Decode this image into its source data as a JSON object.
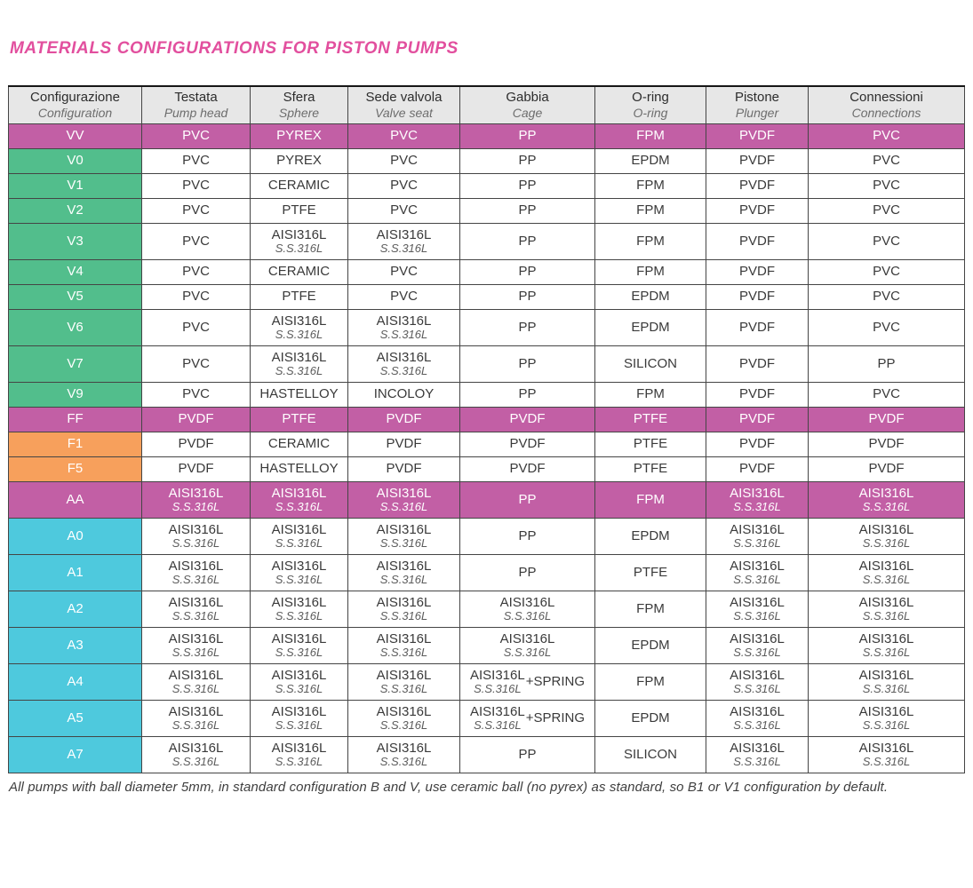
{
  "title": "MATERIALS CONFIGURATIONS FOR PISTON PUMPS",
  "footnote": "All pumps with ball diameter 5mm, in standard configuration B and V, use ceramic ball (no pyrex) as standard, so B1 or V1 configuration by default.",
  "colors": {
    "pink": "#e24f9e",
    "magenta": "#c25fa5",
    "green": "#52be8c",
    "orange": "#f7a05c",
    "cyan": "#4ec9dd",
    "headerBg": "#e7e7e7"
  },
  "table": {
    "columns": [
      {
        "it": "Configurazione",
        "en": "Configuration"
      },
      {
        "it": "Testata",
        "en": "Pump head"
      },
      {
        "it": "Sfera",
        "en": "Sphere"
      },
      {
        "it": "Sede valvola",
        "en": "Valve seat"
      },
      {
        "it": "Gabbia",
        "en": "Cage"
      },
      {
        "it": "O-ring",
        "en": "O-ring"
      },
      {
        "it": "Pistone",
        "en": "Plunger"
      },
      {
        "it": "Connessioni",
        "en": "Connections"
      }
    ],
    "rows": [
      {
        "code": "VV",
        "type": "magenta",
        "cells": [
          "PVC",
          "PYREX",
          "PVC",
          "PP",
          "FPM",
          "PVDF",
          "PVC"
        ]
      },
      {
        "code": "V0",
        "type": "green",
        "cells": [
          "PVC",
          "PYREX",
          "PVC",
          "PP",
          "EPDM",
          "PVDF",
          "PVC"
        ]
      },
      {
        "code": "V1",
        "type": "green",
        "cells": [
          "PVC",
          "CERAMIC",
          "PVC",
          "PP",
          "FPM",
          "PVDF",
          "PVC"
        ]
      },
      {
        "code": "V2",
        "type": "green",
        "cells": [
          "PVC",
          "PTFE",
          "PVC",
          "PP",
          "FPM",
          "PVDF",
          "PVC"
        ]
      },
      {
        "code": "V3",
        "type": "green",
        "cells": [
          "PVC",
          {
            "main": "AISI316L",
            "sub": "S.S.316L"
          },
          {
            "main": "AISI316L",
            "sub": "S.S.316L"
          },
          "PP",
          "FPM",
          "PVDF",
          "PVC"
        ]
      },
      {
        "code": "V4",
        "type": "green",
        "cells": [
          "PVC",
          "CERAMIC",
          "PVC",
          "PP",
          "FPM",
          "PVDF",
          "PVC"
        ]
      },
      {
        "code": "V5",
        "type": "green",
        "cells": [
          "PVC",
          "PTFE",
          "PVC",
          "PP",
          "EPDM",
          "PVDF",
          "PVC"
        ]
      },
      {
        "code": "V6",
        "type": "green",
        "cells": [
          "PVC",
          {
            "main": "AISI316L",
            "sub": "S.S.316L"
          },
          {
            "main": "AISI316L",
            "sub": "S.S.316L"
          },
          "PP",
          "EPDM",
          "PVDF",
          "PVC"
        ]
      },
      {
        "code": "V7",
        "type": "green",
        "cells": [
          "PVC",
          {
            "main": "AISI316L",
            "sub": "S.S.316L"
          },
          {
            "main": "AISI316L",
            "sub": "S.S.316L"
          },
          "PP",
          "SILICON",
          "PVDF",
          "PP"
        ]
      },
      {
        "code": "V9",
        "type": "green",
        "cells": [
          "PVC",
          "HASTELLOY",
          "INCOLOY",
          "PP",
          "FPM",
          "PVDF",
          "PVC"
        ]
      },
      {
        "code": "FF",
        "type": "magenta",
        "cells": [
          "PVDF",
          "PTFE",
          "PVDF",
          "PVDF",
          "PTFE",
          "PVDF",
          "PVDF"
        ]
      },
      {
        "code": "F1",
        "type": "orange",
        "cells": [
          "PVDF",
          "CERAMIC",
          "PVDF",
          "PVDF",
          "PTFE",
          "PVDF",
          "PVDF"
        ]
      },
      {
        "code": "F5",
        "type": "orange",
        "cells": [
          "PVDF",
          "HASTELLOY",
          "PVDF",
          "PVDF",
          "PTFE",
          "PVDF",
          "PVDF"
        ]
      },
      {
        "code": "AA",
        "type": "magenta",
        "cells": [
          {
            "main": "AISI316L",
            "sub": "S.S.316L"
          },
          {
            "main": "AISI316L",
            "sub": "S.S.316L"
          },
          {
            "main": "AISI316L",
            "sub": "S.S.316L"
          },
          "PP",
          "FPM",
          {
            "main": "AISI316L",
            "sub": "S.S.316L"
          },
          {
            "main": "AISI316L",
            "sub": "S.S.316L"
          }
        ]
      },
      {
        "code": "A0",
        "type": "cyan",
        "cells": [
          {
            "main": "AISI316L",
            "sub": "S.S.316L"
          },
          {
            "main": "AISI316L",
            "sub": "S.S.316L"
          },
          {
            "main": "AISI316L",
            "sub": "S.S.316L"
          },
          "PP",
          "EPDM",
          {
            "main": "AISI316L",
            "sub": "S.S.316L"
          },
          {
            "main": "AISI316L",
            "sub": "S.S.316L"
          }
        ]
      },
      {
        "code": "A1",
        "type": "cyan",
        "cells": [
          {
            "main": "AISI316L",
            "sub": "S.S.316L"
          },
          {
            "main": "AISI316L",
            "sub": "S.S.316L"
          },
          {
            "main": "AISI316L",
            "sub": "S.S.316L"
          },
          "PP",
          "PTFE",
          {
            "main": "AISI316L",
            "sub": "S.S.316L"
          },
          {
            "main": "AISI316L",
            "sub": "S.S.316L"
          }
        ]
      },
      {
        "code": "A2",
        "type": "cyan",
        "cells": [
          {
            "main": "AISI316L",
            "sub": "S.S.316L"
          },
          {
            "main": "AISI316L",
            "sub": "S.S.316L"
          },
          {
            "main": "AISI316L",
            "sub": "S.S.316L"
          },
          {
            "main": "AISI316L",
            "sub": "S.S.316L"
          },
          "FPM",
          {
            "main": "AISI316L",
            "sub": "S.S.316L"
          },
          {
            "main": "AISI316L",
            "sub": "S.S.316L"
          }
        ]
      },
      {
        "code": "A3",
        "type": "cyan",
        "cells": [
          {
            "main": "AISI316L",
            "sub": "S.S.316L"
          },
          {
            "main": "AISI316L",
            "sub": "S.S.316L"
          },
          {
            "main": "AISI316L",
            "sub": "S.S.316L"
          },
          {
            "main": "AISI316L",
            "sub": "S.S.316L"
          },
          "EPDM",
          {
            "main": "AISI316L",
            "sub": "S.S.316L"
          },
          {
            "main": "AISI316L",
            "sub": "S.S.316L"
          }
        ]
      },
      {
        "code": "A4",
        "type": "cyan",
        "cells": [
          {
            "main": "AISI316L",
            "sub": "S.S.316L"
          },
          {
            "main": "AISI316L",
            "sub": "S.S.316L"
          },
          {
            "main": "AISI316L",
            "sub": "S.S.316L"
          },
          {
            "main": "AISI316L",
            "sub": "S.S.316L",
            "suffix": "+SPRING"
          },
          "FPM",
          {
            "main": "AISI316L",
            "sub": "S.S.316L"
          },
          {
            "main": "AISI316L",
            "sub": "S.S.316L"
          }
        ]
      },
      {
        "code": "A5",
        "type": "cyan",
        "cells": [
          {
            "main": "AISI316L",
            "sub": "S.S.316L"
          },
          {
            "main": "AISI316L",
            "sub": "S.S.316L"
          },
          {
            "main": "AISI316L",
            "sub": "S.S.316L"
          },
          {
            "main": "AISI316L",
            "sub": "S.S.316L",
            "suffix": "+SPRING"
          },
          "EPDM",
          {
            "main": "AISI316L",
            "sub": "S.S.316L"
          },
          {
            "main": "AISI316L",
            "sub": "S.S.316L"
          }
        ]
      },
      {
        "code": "A7",
        "type": "cyan",
        "cells": [
          {
            "main": "AISI316L",
            "sub": "S.S.316L"
          },
          {
            "main": "AISI316L",
            "sub": "S.S.316L"
          },
          {
            "main": "AISI316L",
            "sub": "S.S.316L"
          },
          "PP",
          "SILICON",
          {
            "main": "AISI316L",
            "sub": "S.S.316L"
          },
          {
            "main": "AISI316L",
            "sub": "S.S.316L"
          }
        ]
      }
    ]
  }
}
